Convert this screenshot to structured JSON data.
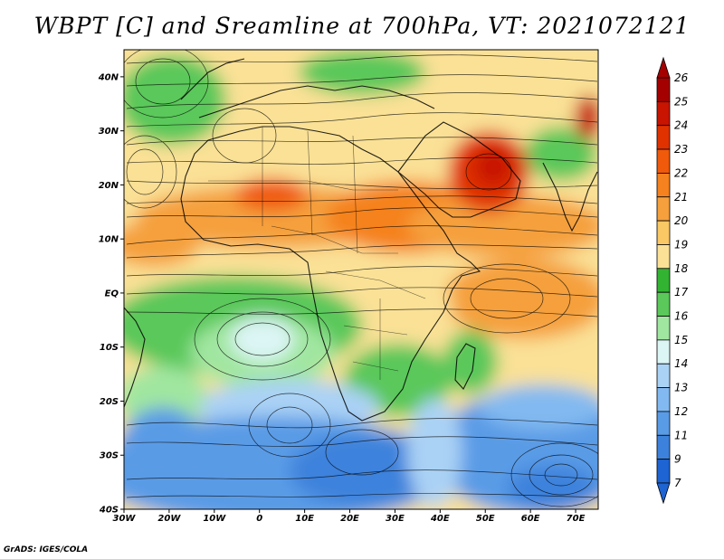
{
  "title": "WBPT [C] and Sreamline at 700hPa, VT: 2021072121",
  "footer": "GrADS: IGES/COLA",
  "map": {
    "lat_labels": [
      "40N",
      "30N",
      "20N",
      "10N",
      "EQ",
      "10S",
      "20S",
      "30S",
      "40S"
    ],
    "lat_values": [
      40,
      30,
      20,
      10,
      0,
      -10,
      -20,
      -30,
      -40
    ],
    "lon_labels": [
      "30W",
      "20W",
      "10W",
      "0",
      "10E",
      "20E",
      "30E",
      "40E",
      "50E",
      "60E",
      "70E"
    ],
    "lon_values": [
      -30,
      -20,
      -10,
      0,
      10,
      20,
      30,
      40,
      50,
      60,
      70
    ],
    "lat_range": [
      -40,
      45
    ],
    "lon_range": [
      -30,
      75
    ]
  },
  "colorbar": {
    "labels": [
      "26",
      "25",
      "24",
      "23",
      "22",
      "21",
      "20",
      "19",
      "18",
      "17",
      "16",
      "15",
      "14",
      "13",
      "12",
      "11",
      "9",
      "7"
    ],
    "colors": [
      "#a50000",
      "#c81400",
      "#e03200",
      "#f05a0a",
      "#f5821e",
      "#f5a03c",
      "#fac864",
      "#fae196",
      "#32b432",
      "#5ac85a",
      "#a0e6a0",
      "#dcf5f5",
      "#aad2f5",
      "#82b9f0",
      "#5a9be6",
      "#3c82dc",
      "#1e64d2"
    ]
  }
}
